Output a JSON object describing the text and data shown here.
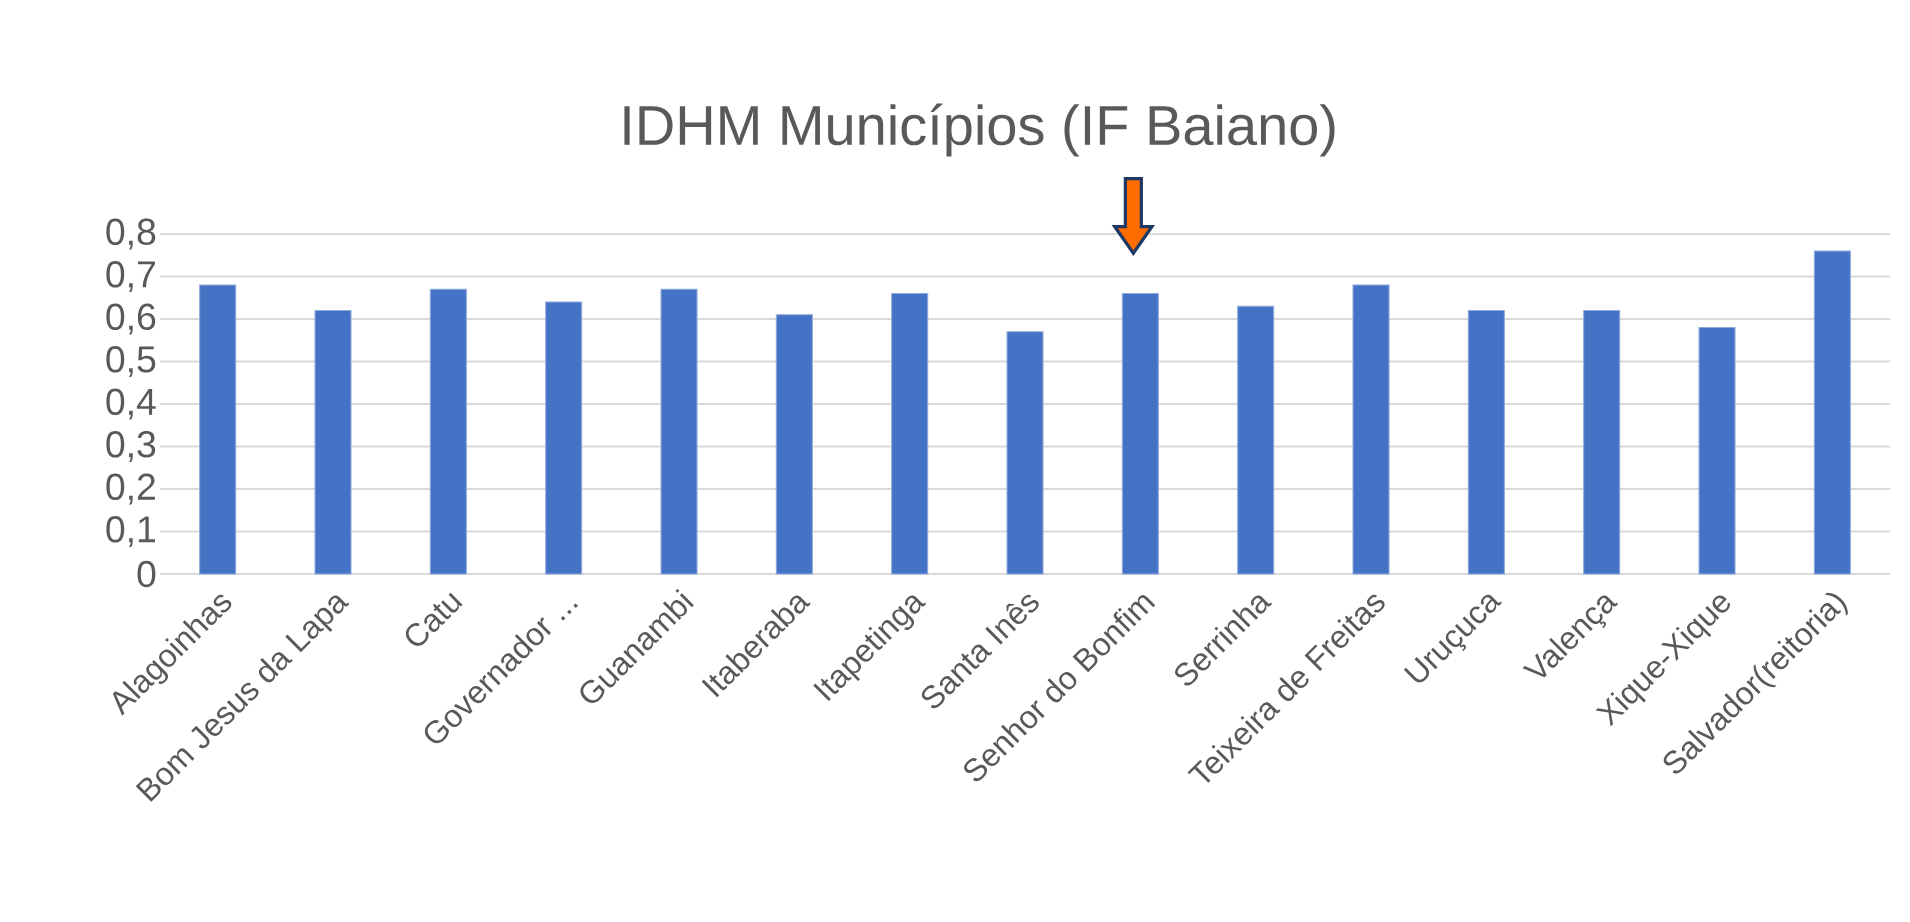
{
  "chart_data": {
    "type": "bar",
    "title": "IDHM Municípios (IF Baiano)",
    "categories": [
      "Alagoinhas",
      "Bom Jesus da Lapa",
      "Catu",
      "Governador ...",
      "Guanambi",
      "Itaberaba",
      "Itapetinga",
      "Santa Inês",
      "Senhor do Bonfim",
      "Serrinha",
      "Teixeira de Freitas",
      "Uruçuca",
      "Valença",
      "Xique-Xique",
      "Salvador(reitoria)"
    ],
    "values": [
      0.68,
      0.62,
      0.67,
      0.64,
      0.67,
      0.61,
      0.66,
      0.57,
      0.66,
      0.63,
      0.68,
      0.62,
      0.62,
      0.58,
      0.76
    ],
    "color": "#4472c4",
    "ylim": [
      0,
      0.8
    ],
    "yticks": [
      {
        "value": 0,
        "label": "0"
      },
      {
        "value": 0.1,
        "label": "0,1"
      },
      {
        "value": 0.2,
        "label": "0,2"
      },
      {
        "value": 0.3,
        "label": "0,3"
      },
      {
        "value": 0.4,
        "label": "0,4"
      },
      {
        "value": 0.5,
        "label": "0,5"
      },
      {
        "value": 0.6,
        "label": "0,6"
      },
      {
        "value": 0.7,
        "label": "0,7"
      },
      {
        "value": 0.8,
        "label": "0,8"
      }
    ],
    "grid": "y"
  }
}
